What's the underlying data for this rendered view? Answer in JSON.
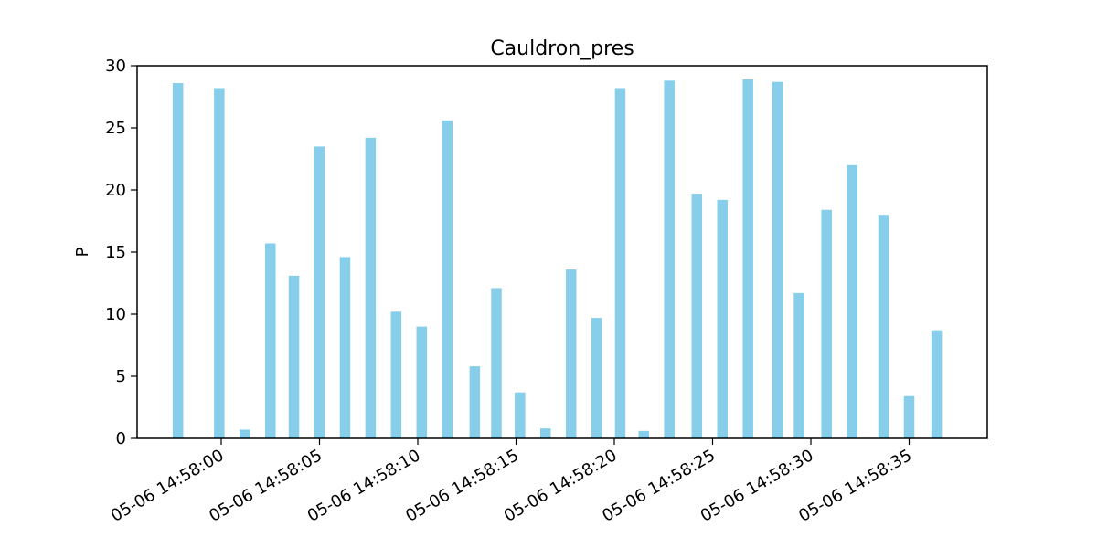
{
  "chart_data": {
    "type": "bar",
    "title": "Cauldron_pres",
    "xlabel": "",
    "ylabel": "P",
    "ylim": [
      0,
      30
    ],
    "yticks": [
      0,
      5,
      10,
      15,
      20,
      25,
      30
    ],
    "xtick_labels": [
      "05-06 14:58:00",
      "05-06 14:58:05",
      "05-06 14:58:10",
      "05-06 14:58:15",
      "05-06 14:58:20",
      "05-06 14:58:25",
      "05-06 14:58:30",
      "05-06 14:58:35"
    ],
    "bar_color": "#87CEEB",
    "grid": false,
    "points": [
      {
        "t": "05-06 14:57:57.8",
        "value": 28.6
      },
      {
        "t": "05-06 14:57:59.9",
        "value": 28.2
      },
      {
        "t": "05-06 14:58:01.2",
        "value": 0.7
      },
      {
        "t": "05-06 14:58:02.5",
        "value": 15.7
      },
      {
        "t": "05-06 14:58:03.7",
        "value": 13.1
      },
      {
        "t": "05-06 14:58:05.0",
        "value": 23.5
      },
      {
        "t": "05-06 14:58:06.3",
        "value": 14.6
      },
      {
        "t": "05-06 14:58:07.6",
        "value": 24.2
      },
      {
        "t": "05-06 14:58:08.9",
        "value": 10.2
      },
      {
        "t": "05-06 14:58:10.2",
        "value": 9.0
      },
      {
        "t": "05-06 14:58:11.5",
        "value": 25.6
      },
      {
        "t": "05-06 14:58:12.9",
        "value": 5.8
      },
      {
        "t": "05-06 14:58:14.0",
        "value": 12.1
      },
      {
        "t": "05-06 14:58:15.2",
        "value": 3.7
      },
      {
        "t": "05-06 14:58:16.5",
        "value": 0.8
      },
      {
        "t": "05-06 14:58:17.8",
        "value": 13.6
      },
      {
        "t": "05-06 14:58:19.1",
        "value": 9.7
      },
      {
        "t": "05-06 14:58:20.3",
        "value": 28.2
      },
      {
        "t": "05-06 14:58:21.5",
        "value": 0.6
      },
      {
        "t": "05-06 14:58:22.8",
        "value": 28.8
      },
      {
        "t": "05-06 14:58:24.2",
        "value": 19.7
      },
      {
        "t": "05-06 14:58:25.5",
        "value": 19.2
      },
      {
        "t": "05-06 14:58:26.8",
        "value": 28.9
      },
      {
        "t": "05-06 14:58:28.3",
        "value": 28.7
      },
      {
        "t": "05-06 14:58:29.4",
        "value": 11.7
      },
      {
        "t": "05-06 14:58:30.8",
        "value": 18.4
      },
      {
        "t": "05-06 14:58:32.1",
        "value": 22.0
      },
      {
        "t": "05-06 14:58:33.7",
        "value": 18.0
      },
      {
        "t": "05-06 14:58:35.0",
        "value": 3.4
      },
      {
        "t": "05-06 14:58:36.4",
        "value": 8.7
      }
    ]
  }
}
